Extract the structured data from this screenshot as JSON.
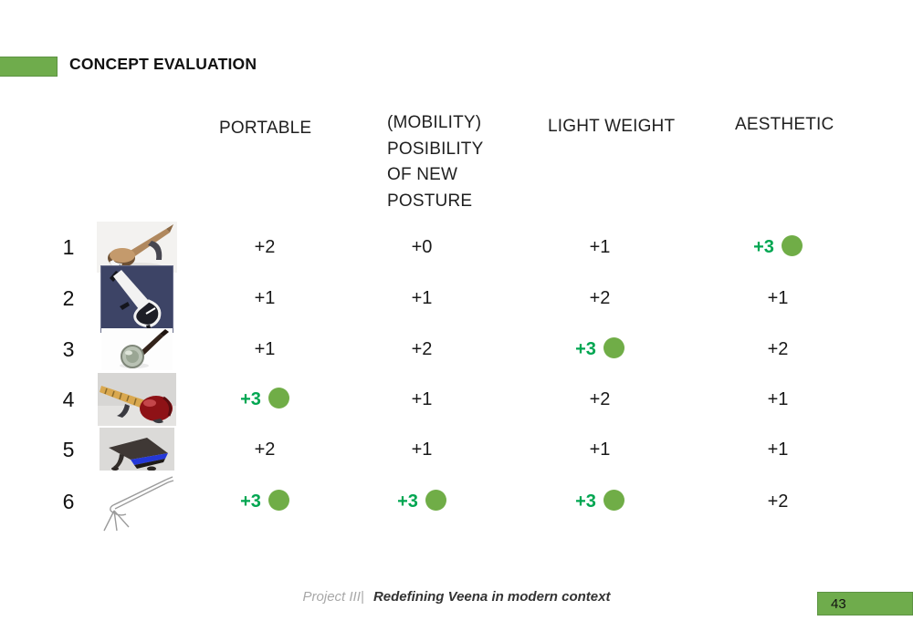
{
  "title": {
    "label": "CONCEPT EVALUATION"
  },
  "colors": {
    "accent_green": "#6fac4c",
    "accent_green_border": "#5d9343",
    "highlight_text_green": "#00a651",
    "highlight_dot_green": "#70ad47",
    "text_dark": "#1a1a1a"
  },
  "table": {
    "columns": [
      {
        "label": "PORTABLE"
      },
      {
        "label": "(MOBILITY) POSIBILITY OF NEW POSTURE",
        "lines": [
          "(MOBILITY)",
          "POSIBILITY",
          "OF NEW",
          "POSTURE"
        ]
      },
      {
        "label": "LIGHT WEIGHT"
      },
      {
        "label": "AESTHETIC"
      }
    ],
    "rows": [
      {
        "num": "1",
        "image": {
          "kind": "tan-render",
          "desc": "tan veena concept render"
        },
        "values": [
          {
            "text": "+2",
            "highlight": false
          },
          {
            "text": "+0",
            "highlight": false
          },
          {
            "text": "+1",
            "highlight": false
          },
          {
            "text": "+3",
            "highlight": true
          }
        ]
      },
      {
        "num": "2",
        "image": {
          "kind": "navy-white",
          "desc": "white veena on navy background"
        },
        "values": [
          {
            "text": "+1",
            "highlight": false
          },
          {
            "text": "+1",
            "highlight": false
          },
          {
            "text": "+2",
            "highlight": false
          },
          {
            "text": "+1",
            "highlight": false
          }
        ]
      },
      {
        "num": "3",
        "image": {
          "kind": "banjo",
          "desc": "small round-body concept render"
        },
        "values": [
          {
            "text": "+1",
            "highlight": false
          },
          {
            "text": "+2",
            "highlight": false
          },
          {
            "text": "+3",
            "highlight": true
          },
          {
            "text": "+2",
            "highlight": false
          }
        ]
      },
      {
        "num": "4",
        "image": {
          "kind": "red-sitar",
          "desc": "red body with wooden fretboard render"
        },
        "values": [
          {
            "text": "+3",
            "highlight": true
          },
          {
            "text": "+1",
            "highlight": false
          },
          {
            "text": "+2",
            "highlight": false
          },
          {
            "text": "+1",
            "highlight": false
          }
        ]
      },
      {
        "num": "5",
        "image": {
          "kind": "dark-slab",
          "desc": "dark wedge concept with blue edge"
        },
        "values": [
          {
            "text": "+2",
            "highlight": false
          },
          {
            "text": "+1",
            "highlight": false
          },
          {
            "text": "+1",
            "highlight": false
          },
          {
            "text": "+1",
            "highlight": false
          }
        ]
      },
      {
        "num": "6",
        "image": {
          "kind": "wireframe",
          "desc": "wireframe sketch concept"
        },
        "values": [
          {
            "text": "+3",
            "highlight": true
          },
          {
            "text": "+3",
            "highlight": true
          },
          {
            "text": "+3",
            "highlight": true
          },
          {
            "text": "+2",
            "highlight": false
          }
        ]
      }
    ]
  },
  "footer": {
    "project_label": "Project III|",
    "slide_title": "Redefining Veena in modern context",
    "page_number": "43"
  }
}
